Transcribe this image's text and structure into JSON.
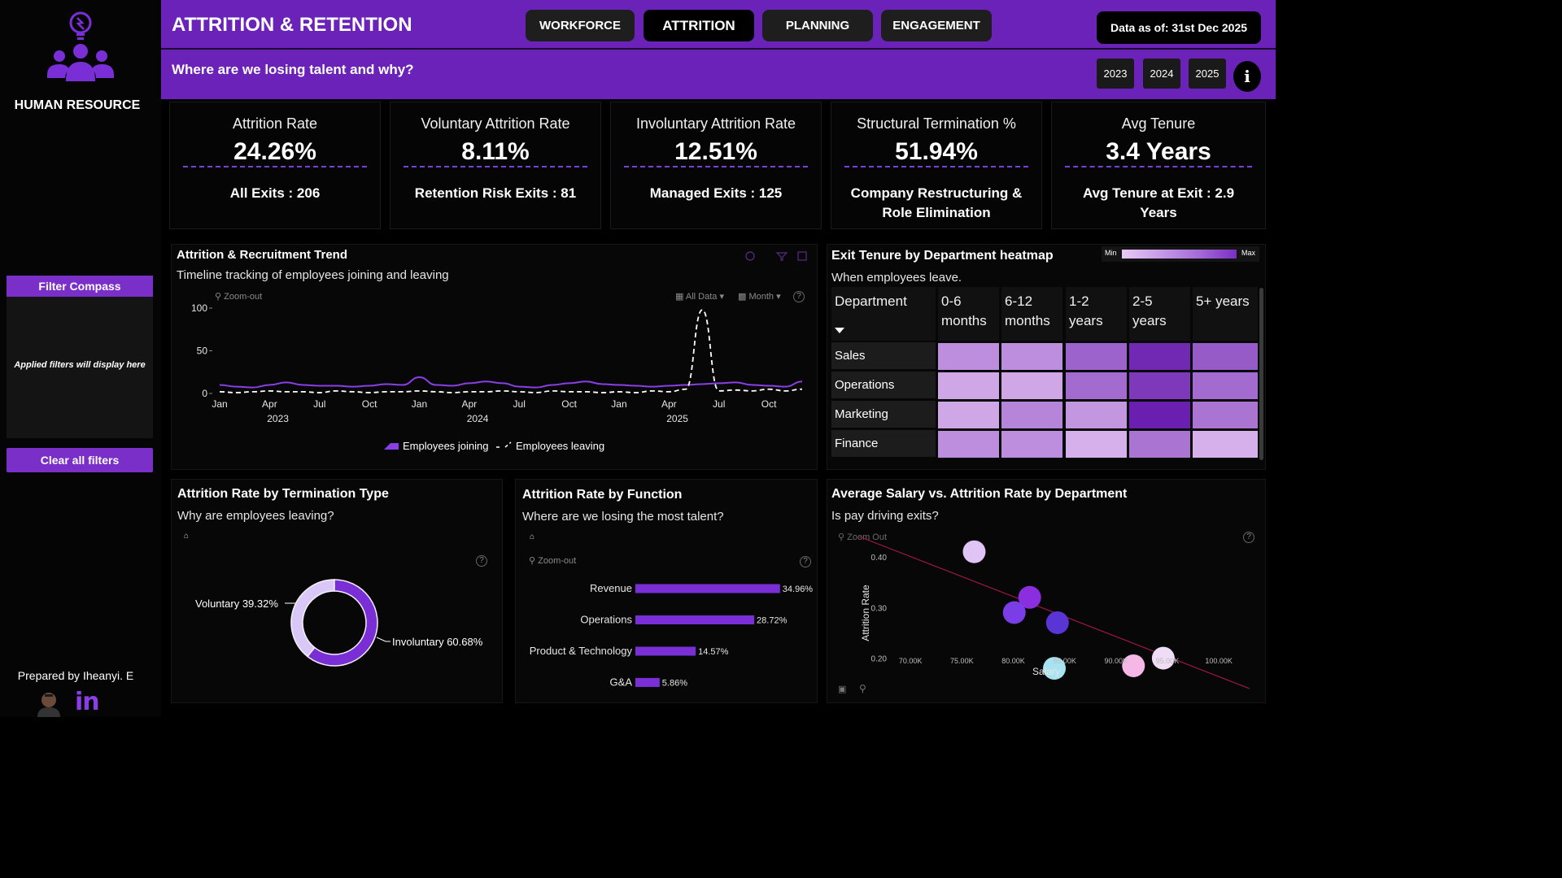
{
  "sidebar": {
    "brand": "HUMAN RESOURCE",
    "filter_title": "Filter Compass",
    "filter_note": "Applied filters will display here",
    "clear_button": "Clear all filters",
    "prepared_by": "Prepared by Iheanyi. E",
    "linkedin_icon": "linkedin-icon",
    "logo_icon": "people-lightbulb-icon"
  },
  "header": {
    "title": "ATTRITION & RETENTION",
    "tabs": [
      {
        "label": "WORKFORCE",
        "active": false
      },
      {
        "label": "ATTRITION",
        "active": true
      },
      {
        "label": "PLANNING",
        "active": false
      },
      {
        "label": "ENGAGEMENT",
        "active": false
      }
    ],
    "data_as_of": "Data as of: 31st Dec 2025",
    "subtitle": "Where are we losing talent and why?",
    "years": [
      "2023",
      "2024",
      "2025"
    ],
    "info_label": "i"
  },
  "kpis": [
    {
      "label": "Attrition Rate",
      "value": "24.26%",
      "sub": "All Exits : 206"
    },
    {
      "label": "Voluntary Attrition Rate",
      "value": "8.11%",
      "sub": "Retention Risk Exits : 81"
    },
    {
      "label": "Involuntary Attrition Rate",
      "value": "12.51%",
      "sub": "Managed Exits : 125"
    },
    {
      "label": "Structural Termination %",
      "value": "51.94%",
      "sub": "Company Restructuring & Role Elimination"
    },
    {
      "label": "Avg Tenure",
      "value": "3.4 Years",
      "sub": "Avg Tenure at Exit : 2.9 Years"
    }
  ],
  "trend": {
    "title": "Attrition & Recruitment Trend",
    "subtitle": "Timeline tracking of employees joining and leaving",
    "zoom_out": "Zoom-out",
    "data_filter": "All Data",
    "granularity": "Month"
  },
  "heatmap": {
    "title": "Exit Tenure by Department heatmap",
    "subtitle": "When employees leave.",
    "legend_min": "Min",
    "legend_max": "Max",
    "header_department": "Department",
    "columns": [
      "0-6 months",
      "6-12 months",
      "1-2 years",
      "2-5 years",
      "5+ years"
    ],
    "rows": [
      {
        "label": "Sales",
        "levels": [
          0.35,
          0.35,
          0.6,
          0.95,
          0.65
        ]
      },
      {
        "label": "Operations",
        "levels": [
          0.2,
          0.2,
          0.55,
          0.85,
          0.55
        ]
      },
      {
        "label": "Marketing",
        "levels": [
          0.2,
          0.4,
          0.3,
          1.0,
          0.5
        ]
      },
      {
        "label": "Finance",
        "levels": [
          0.35,
          0.35,
          0.15,
          0.5,
          0.15
        ]
      }
    ],
    "colors": {
      "min": "#e8c9f5",
      "max": "#6b1fb0"
    }
  },
  "termination": {
    "title": "Attrition Rate by Termination Type",
    "subtitle": "Why are employees leaving?",
    "slice_labels": [
      "Voluntary 39.32%",
      "Involuntary 60.68%"
    ]
  },
  "function": {
    "title": "Attrition Rate by Function",
    "subtitle": "Where are we losing the most talent?",
    "zoom_out": "Zoom-out"
  },
  "salary": {
    "title": "Average Salary vs. Attrition Rate by Department",
    "subtitle": "Is pay driving exits?",
    "zoom_out": "Zoom Out"
  },
  "chart_data": [
    {
      "type": "line",
      "x_ticks": [
        "Jan",
        "Apr",
        "Jul",
        "Oct",
        "Jan",
        "Apr",
        "Jul",
        "Oct",
        "Jan",
        "Apr",
        "Jul",
        "Oct"
      ],
      "year_labels": [
        "2023",
        "2024",
        "2025"
      ],
      "ylim": [
        0,
        100
      ],
      "y_ticks": [
        0,
        50,
        100
      ],
      "series": [
        {
          "name": "Employees joining",
          "color": "#8a3ee6",
          "style": "solid",
          "values": [
            10,
            8,
            7,
            10,
            13,
            10,
            9,
            9,
            8,
            9,
            11,
            10,
            19,
            10,
            9,
            12,
            14,
            12,
            8,
            7,
            10,
            12,
            14,
            11,
            10,
            9,
            8,
            9,
            10,
            11,
            12,
            13,
            10,
            9,
            8,
            14
          ]
        },
        {
          "name": "Employees leaving",
          "color": "#ffffff",
          "style": "dashed",
          "values": [
            2,
            1,
            2,
            3,
            2,
            2,
            1,
            3,
            2,
            1,
            2,
            2,
            3,
            2,
            1,
            2,
            2,
            3,
            2,
            1,
            3,
            2,
            2,
            1,
            2,
            1,
            3,
            2,
            5,
            98,
            3,
            4,
            3,
            5,
            3,
            5
          ]
        }
      ]
    },
    {
      "type": "pie",
      "categories": [
        "Voluntary",
        "Involuntary"
      ],
      "values": [
        39.32,
        60.68
      ],
      "colors": [
        "#d9c7f7",
        "#7a2fd6"
      ]
    },
    {
      "type": "bar",
      "categories": [
        "Revenue",
        "Operations",
        "Product & Technology",
        "G&A"
      ],
      "values": [
        34.96,
        28.72,
        14.57,
        5.86
      ],
      "value_labels": [
        "34.96%",
        "28.72%",
        "14.57%",
        "5.86%"
      ],
      "color": "#7a2fd6",
      "xlim": [
        0,
        35
      ]
    },
    {
      "type": "scatter",
      "xlabel": "Salary",
      "ylabel": "Attrition Rate",
      "xlim": [
        65000,
        103000
      ],
      "ylim": [
        0.14,
        0.44
      ],
      "x_ticks": [
        "70.00K",
        "75.00K",
        "80.00K",
        "85.00K",
        "90.00K",
        "95.00K",
        "100.00K"
      ],
      "x_tick_values": [
        70000,
        75000,
        80000,
        85000,
        90000,
        95000,
        100000
      ],
      "y_ticks": [
        "0.20",
        "0.30",
        "0.40"
      ],
      "y_tick_values": [
        0.2,
        0.3,
        0.4
      ],
      "points": [
        {
          "x": 76200,
          "y": 0.41,
          "color": "#e0c4f5"
        },
        {
          "x": 81600,
          "y": 0.32,
          "color": "#8a2ee0"
        },
        {
          "x": 80100,
          "y": 0.29,
          "color": "#7a3ee6"
        },
        {
          "x": 84300,
          "y": 0.27,
          "color": "#5a35d6"
        },
        {
          "x": 84000,
          "y": 0.18,
          "color": "#a8e3f2"
        },
        {
          "x": 91700,
          "y": 0.185,
          "color": "#f5b7e6"
        },
        {
          "x": 94600,
          "y": 0.2,
          "color": "#efdcf5"
        }
      ],
      "trend_line": {
        "x": [
          65000,
          103000
        ],
        "y": [
          0.44,
          0.14
        ],
        "color": "#a01848"
      }
    }
  ]
}
